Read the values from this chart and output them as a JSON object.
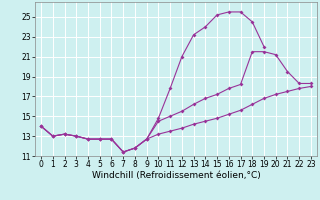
{
  "xlabel": "Windchill (Refroidissement éolien,°C)",
  "bg_color": "#cef0f0",
  "grid_color": "#aadddd",
  "line_color": "#993399",
  "xlim": [
    -0.5,
    23.5
  ],
  "ylim": [
    11,
    26.5
  ],
  "xticks": [
    0,
    1,
    2,
    3,
    4,
    5,
    6,
    7,
    8,
    9,
    10,
    11,
    12,
    13,
    14,
    15,
    16,
    17,
    18,
    19,
    20,
    21,
    22,
    23
  ],
  "yticks": [
    11,
    13,
    15,
    17,
    19,
    21,
    23,
    25
  ],
  "curve1_x": [
    0,
    1,
    2,
    3,
    4,
    5,
    6,
    7,
    8,
    9,
    10,
    11,
    12,
    13,
    14,
    15,
    16,
    17,
    18,
    19
  ],
  "curve1_y": [
    14.0,
    13.0,
    13.2,
    13.0,
    12.7,
    12.7,
    12.7,
    11.4,
    11.8,
    12.7,
    14.8,
    17.8,
    21.0,
    23.2,
    24.0,
    25.2,
    25.5,
    25.5,
    24.5,
    22.0
  ],
  "curve2_x": [
    0,
    1,
    2,
    3,
    4,
    5,
    6,
    7,
    8,
    9,
    10,
    11,
    12,
    13,
    14,
    15,
    16,
    17,
    18,
    19,
    20,
    21,
    22,
    23
  ],
  "curve2_y": [
    14.0,
    13.0,
    13.2,
    13.0,
    12.7,
    12.7,
    12.7,
    11.4,
    11.8,
    12.7,
    14.5,
    15.0,
    15.5,
    16.2,
    16.8,
    17.2,
    17.8,
    18.2,
    21.5,
    21.5,
    21.2,
    19.5,
    18.3,
    18.3
  ],
  "curve3_x": [
    0,
    1,
    2,
    3,
    4,
    5,
    6,
    7,
    8,
    9,
    10,
    11,
    12,
    13,
    14,
    15,
    16,
    17,
    18,
    19,
    20,
    21,
    22,
    23
  ],
  "curve3_y": [
    14.0,
    13.0,
    13.2,
    13.0,
    12.7,
    12.7,
    12.7,
    11.4,
    11.8,
    12.7,
    13.2,
    13.5,
    13.8,
    14.2,
    14.5,
    14.8,
    15.2,
    15.6,
    16.2,
    16.8,
    17.2,
    17.5,
    17.8,
    18.0
  ],
  "label_fontsize": 6.5,
  "tick_fontsize": 5.5
}
